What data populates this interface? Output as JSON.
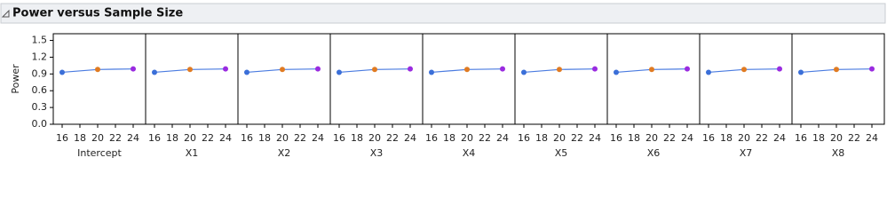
{
  "title": "Power versus Sample Size",
  "chart_data": [
    {
      "type": "line",
      "x_label": "Intercept",
      "y_label": "Power",
      "x": [
        16,
        20,
        24
      ],
      "values": [
        0.93,
        0.98,
        0.99
      ],
      "color": "#4a7be0",
      "point_colors": [
        "#3b6fd8",
        "#e07b22",
        "#9a2be0"
      ],
      "xlim": [
        15,
        25.4
      ],
      "xticks": [
        16,
        18,
        20,
        22,
        24
      ],
      "ylim": [
        0,
        1.62
      ],
      "yticks": [
        {
          "value": 0,
          "label": "0.0"
        },
        0.3,
        0.6,
        0.9,
        1.2,
        1.5
      ]
    },
    {
      "type": "line",
      "x_label": "X1",
      "x": [
        16,
        20,
        24
      ],
      "values": [
        0.93,
        0.98,
        0.99
      ],
      "color": "#4a7be0",
      "point_colors": [
        "#3b6fd8",
        "#e07b22",
        "#9a2be0"
      ],
      "xlim": [
        15,
        25.4
      ],
      "xticks": [
        16,
        18,
        20,
        22,
        24
      ],
      "ylim": [
        0,
        1.62
      ]
    },
    {
      "type": "line",
      "x_label": "X2",
      "x": [
        16,
        20,
        24
      ],
      "values": [
        0.93,
        0.98,
        0.99
      ],
      "color": "#4a7be0",
      "point_colors": [
        "#3b6fd8",
        "#e07b22",
        "#9a2be0"
      ],
      "xlim": [
        15,
        25.4
      ],
      "xticks": [
        16,
        18,
        20,
        22,
        24
      ],
      "ylim": [
        0,
        1.62
      ]
    },
    {
      "type": "line",
      "x_label": "X3",
      "x": [
        16,
        20,
        24
      ],
      "values": [
        0.93,
        0.98,
        0.99
      ],
      "color": "#4a7be0",
      "point_colors": [
        "#3b6fd8",
        "#e07b22",
        "#9a2be0"
      ],
      "xlim": [
        15,
        25.4
      ],
      "xticks": [
        16,
        18,
        20,
        22,
        24
      ],
      "ylim": [
        0,
        1.62
      ]
    },
    {
      "type": "line",
      "x_label": "X4",
      "x": [
        16,
        20,
        24
      ],
      "values": [
        0.93,
        0.98,
        0.99
      ],
      "color": "#4a7be0",
      "point_colors": [
        "#3b6fd8",
        "#e07b22",
        "#9a2be0"
      ],
      "xlim": [
        15,
        25.4
      ],
      "xticks": [
        16,
        18,
        20,
        22,
        24
      ],
      "ylim": [
        0,
        1.62
      ]
    },
    {
      "type": "line",
      "x_label": "X5",
      "x": [
        16,
        20,
        24
      ],
      "values": [
        0.93,
        0.98,
        0.99
      ],
      "color": "#4a7be0",
      "point_colors": [
        "#3b6fd8",
        "#e07b22",
        "#9a2be0"
      ],
      "xlim": [
        15,
        25.4
      ],
      "xticks": [
        16,
        18,
        20,
        22,
        24
      ],
      "ylim": [
        0,
        1.62
      ]
    },
    {
      "type": "line",
      "x_label": "X6",
      "x": [
        16,
        20,
        24
      ],
      "values": [
        0.93,
        0.98,
        0.99
      ],
      "color": "#4a7be0",
      "point_colors": [
        "#3b6fd8",
        "#e07b22",
        "#9a2be0"
      ],
      "xlim": [
        15,
        25.4
      ],
      "xticks": [
        16,
        18,
        20,
        22,
        24
      ],
      "ylim": [
        0,
        1.62
      ]
    },
    {
      "type": "line",
      "x_label": "X7",
      "x": [
        16,
        20,
        24
      ],
      "values": [
        0.93,
        0.98,
        0.99
      ],
      "color": "#4a7be0",
      "point_colors": [
        "#3b6fd8",
        "#e07b22",
        "#9a2be0"
      ],
      "xlim": [
        15,
        25.4
      ],
      "xticks": [
        16,
        18,
        20,
        22,
        24
      ],
      "ylim": [
        0,
        1.62
      ]
    },
    {
      "type": "line",
      "x_label": "X8",
      "x": [
        16,
        20,
        24
      ],
      "values": [
        0.93,
        0.98,
        0.99
      ],
      "color": "#4a7be0",
      "point_colors": [
        "#3b6fd8",
        "#e07b22",
        "#9a2be0"
      ],
      "xlim": [
        15,
        25.4
      ],
      "xticks": [
        16,
        18,
        20,
        22,
        24
      ],
      "ylim": [
        0,
        1.62
      ]
    }
  ]
}
